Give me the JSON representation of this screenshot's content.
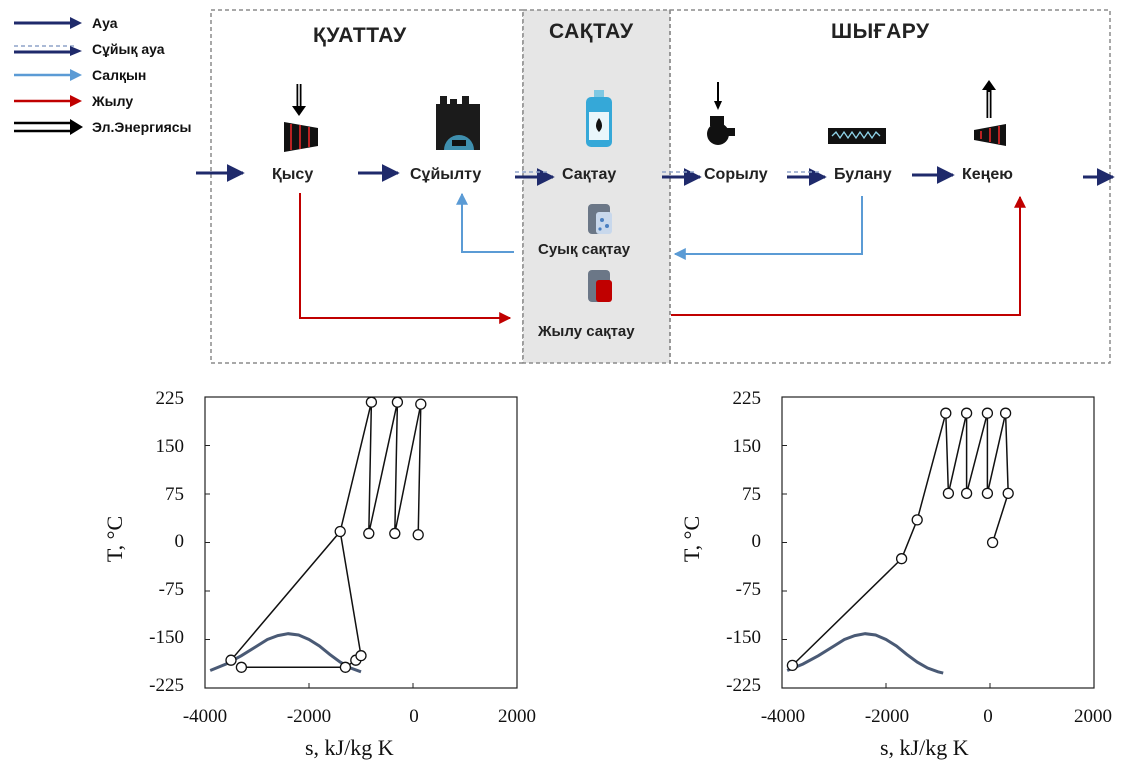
{
  "legend": [
    {
      "label": "Ауа",
      "kind": "air",
      "color": "#1f2a6b"
    },
    {
      "label": "Сұйық ауа",
      "kind": "liquid-air",
      "color": "#1f2a6b"
    },
    {
      "label": "Салқын",
      "kind": "cold",
      "color": "#5b9bd5"
    },
    {
      "label": "Жылу",
      "kind": "heat",
      "color": "#c00000"
    },
    {
      "label": "Эл.Энергиясы",
      "kind": "electricity",
      "color": "#000000"
    }
  ],
  "sections": {
    "charging": "ҚУАТТАУ",
    "storage": "САҚТАУ",
    "discharging": "ШЫҒАРУ"
  },
  "stages": {
    "compression": "Қысу",
    "liquefaction": "Сұйылту",
    "storage": "Сақтау",
    "pumping": "Сорылу",
    "evaporation": "Булану",
    "expansion": "Кеңею"
  },
  "stores": {
    "cold": "Суық сақтау",
    "heat": "Жылу сақтау"
  },
  "colors": {
    "air": "#1f2a6b",
    "cold": "#5b9bd5",
    "heat": "#c00000",
    "dome": "#4a5a75",
    "storage_bg": "#e6e6e6",
    "frame": "#8c8c8c"
  },
  "chart_data": [
    {
      "type": "scatter",
      "title": "",
      "xlabel": "s, kJ/kg K",
      "ylabel": "T, °C",
      "xlim": [
        -4000,
        2000
      ],
      "ylim": [
        -225,
        225
      ],
      "xticks": [
        "-4000",
        "-2000",
        "0",
        "2000"
      ],
      "yticks": [
        "225",
        "150",
        "75",
        "0",
        "-75",
        "-150",
        "-225"
      ],
      "grid": false,
      "process_path": [
        {
          "x": -3300,
          "y": -193
        },
        {
          "x": -1300,
          "y": -193
        },
        {
          "x": -1100,
          "y": -182
        },
        {
          "x": -1000,
          "y": -175
        },
        {
          "x": -1400,
          "y": 17
        },
        {
          "x": -3500,
          "y": -182
        },
        {
          "x": -1400,
          "y": 17
        },
        {
          "x": -800,
          "y": 217
        },
        {
          "x": -850,
          "y": 14
        },
        {
          "x": -300,
          "y": 217
        },
        {
          "x": -350,
          "y": 14
        },
        {
          "x": 150,
          "y": 214
        },
        {
          "x": 100,
          "y": 12
        }
      ],
      "markers": [
        {
          "x": -3500,
          "y": -182
        },
        {
          "x": -3300,
          "y": -193
        },
        {
          "x": -1300,
          "y": -193
        },
        {
          "x": -1100,
          "y": -182
        },
        {
          "x": -1000,
          "y": -175
        },
        {
          "x": -1400,
          "y": 17
        },
        {
          "x": -800,
          "y": 217
        },
        {
          "x": -850,
          "y": 14
        },
        {
          "x": -300,
          "y": 217
        },
        {
          "x": -350,
          "y": 14
        },
        {
          "x": 150,
          "y": 214
        },
        {
          "x": 100,
          "y": 12
        }
      ],
      "saturation_dome": {
        "x": [
          -3900,
          -3600,
          -3300,
          -3000,
          -2800,
          -2600,
          -2400,
          -2200,
          -2000,
          -1800,
          -1600,
          -1400,
          -1200,
          -1000
        ],
        "y": [
          -198,
          -188,
          -175,
          -160,
          -150,
          -144,
          -141,
          -143,
          -150,
          -160,
          -173,
          -185,
          -194,
          -200
        ]
      }
    },
    {
      "type": "scatter",
      "title": "",
      "xlabel": "s, kJ/kg K",
      "ylabel": "T, °C",
      "xlim": [
        -4000,
        2000
      ],
      "ylim": [
        -225,
        225
      ],
      "xticks": [
        "-4000",
        "-2000",
        "0",
        "2000"
      ],
      "yticks": [
        "225",
        "150",
        "75",
        "0",
        "-75",
        "-150",
        "-225"
      ],
      "grid": false,
      "process_path": [
        {
          "x": -3800,
          "y": -190
        },
        {
          "x": -1700,
          "y": -25
        },
        {
          "x": -1400,
          "y": 35
        },
        {
          "x": -850,
          "y": 200
        },
        {
          "x": -800,
          "y": 76
        },
        {
          "x": -450,
          "y": 200
        },
        {
          "x": -450,
          "y": 76
        },
        {
          "x": -50,
          "y": 200
        },
        {
          "x": -50,
          "y": 76
        },
        {
          "x": 300,
          "y": 200
        },
        {
          "x": 350,
          "y": 76
        },
        {
          "x": 50,
          "y": 0
        }
      ],
      "markers": [
        {
          "x": -3800,
          "y": -190
        },
        {
          "x": -1700,
          "y": -25
        },
        {
          "x": -1400,
          "y": 35
        },
        {
          "x": -850,
          "y": 200
        },
        {
          "x": -800,
          "y": 76
        },
        {
          "x": -450,
          "y": 200
        },
        {
          "x": -450,
          "y": 76
        },
        {
          "x": -50,
          "y": 200
        },
        {
          "x": -50,
          "y": 76
        },
        {
          "x": 300,
          "y": 200
        },
        {
          "x": 350,
          "y": 76
        },
        {
          "x": 50,
          "y": 0
        }
      ],
      "saturation_dome": {
        "x": [
          -3900,
          -3600,
          -3300,
          -3000,
          -2800,
          -2600,
          -2400,
          -2200,
          -2000,
          -1800,
          -1600,
          -1400,
          -1200,
          -1000,
          -900
        ],
        "y": [
          -198,
          -188,
          -175,
          -160,
          -150,
          -144,
          -141,
          -143,
          -150,
          -160,
          -173,
          -185,
          -194,
          -200,
          -202
        ]
      }
    }
  ]
}
